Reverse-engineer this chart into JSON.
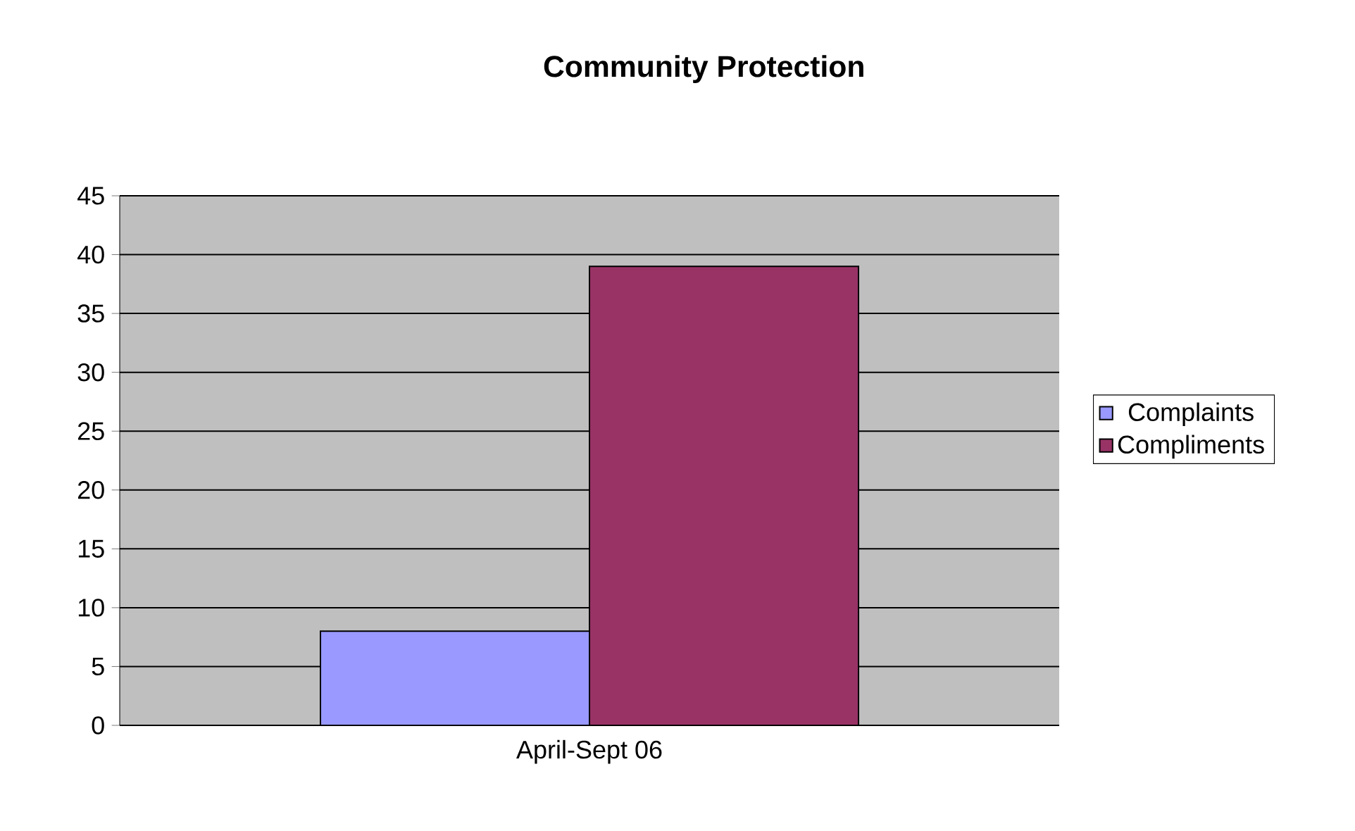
{
  "chart_data": {
    "type": "bar",
    "title": "Community Protection",
    "categories": [
      "April-Sept 06"
    ],
    "series": [
      {
        "name": "Complaints",
        "color": "#9999ff",
        "values": [
          8
        ]
      },
      {
        "name": "Compliments",
        "color": "#993366",
        "values": [
          39
        ]
      }
    ],
    "ylim": [
      0,
      45
    ],
    "yticks": [
      0,
      5,
      10,
      15,
      20,
      25,
      30,
      35,
      40,
      45
    ],
    "grid": "y",
    "legend": "right"
  }
}
